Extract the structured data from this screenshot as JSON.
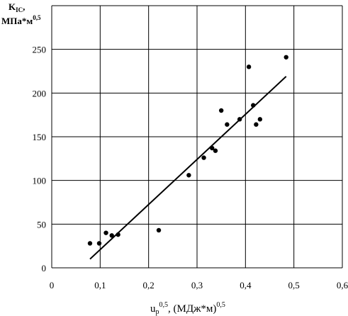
{
  "chart_data": {
    "type": "scatter",
    "title": "",
    "ylabel": {
      "line1_main": "K",
      "line1_sub": "IC",
      "line1_tail": ",",
      "line2_main": "МПа*м",
      "line2_sup": "0,5"
    },
    "xlabel": {
      "main": "u",
      "sub": "p",
      "sup": "0,5",
      "rest": ", (МДж*м)",
      "rest_sup": "0,5"
    },
    "xlim": [
      0,
      0.6
    ],
    "ylim": [
      0,
      300
    ],
    "xticks": [
      "0",
      "0,1",
      "0,2",
      "0,3",
      "0,4",
      "0,5",
      "0,6"
    ],
    "yticks": [
      "0",
      "50",
      "100",
      "150",
      "200",
      "250"
    ],
    "grid": true,
    "legend": "none",
    "points": [
      {
        "x": 0.079,
        "y": 28
      },
      {
        "x": 0.098,
        "y": 28
      },
      {
        "x": 0.112,
        "y": 40
      },
      {
        "x": 0.124,
        "y": 37
      },
      {
        "x": 0.137,
        "y": 38
      },
      {
        "x": 0.221,
        "y": 43
      },
      {
        "x": 0.283,
        "y": 106
      },
      {
        "x": 0.314,
        "y": 126
      },
      {
        "x": 0.331,
        "y": 137
      },
      {
        "x": 0.338,
        "y": 134
      },
      {
        "x": 0.35,
        "y": 180
      },
      {
        "x": 0.362,
        "y": 164
      },
      {
        "x": 0.388,
        "y": 170
      },
      {
        "x": 0.407,
        "y": 230
      },
      {
        "x": 0.416,
        "y": 186
      },
      {
        "x": 0.422,
        "y": 164
      },
      {
        "x": 0.43,
        "y": 170
      },
      {
        "x": 0.484,
        "y": 241
      }
    ],
    "trendline": {
      "x": [
        0.079,
        0.484
      ],
      "y": [
        10,
        219
      ]
    }
  }
}
